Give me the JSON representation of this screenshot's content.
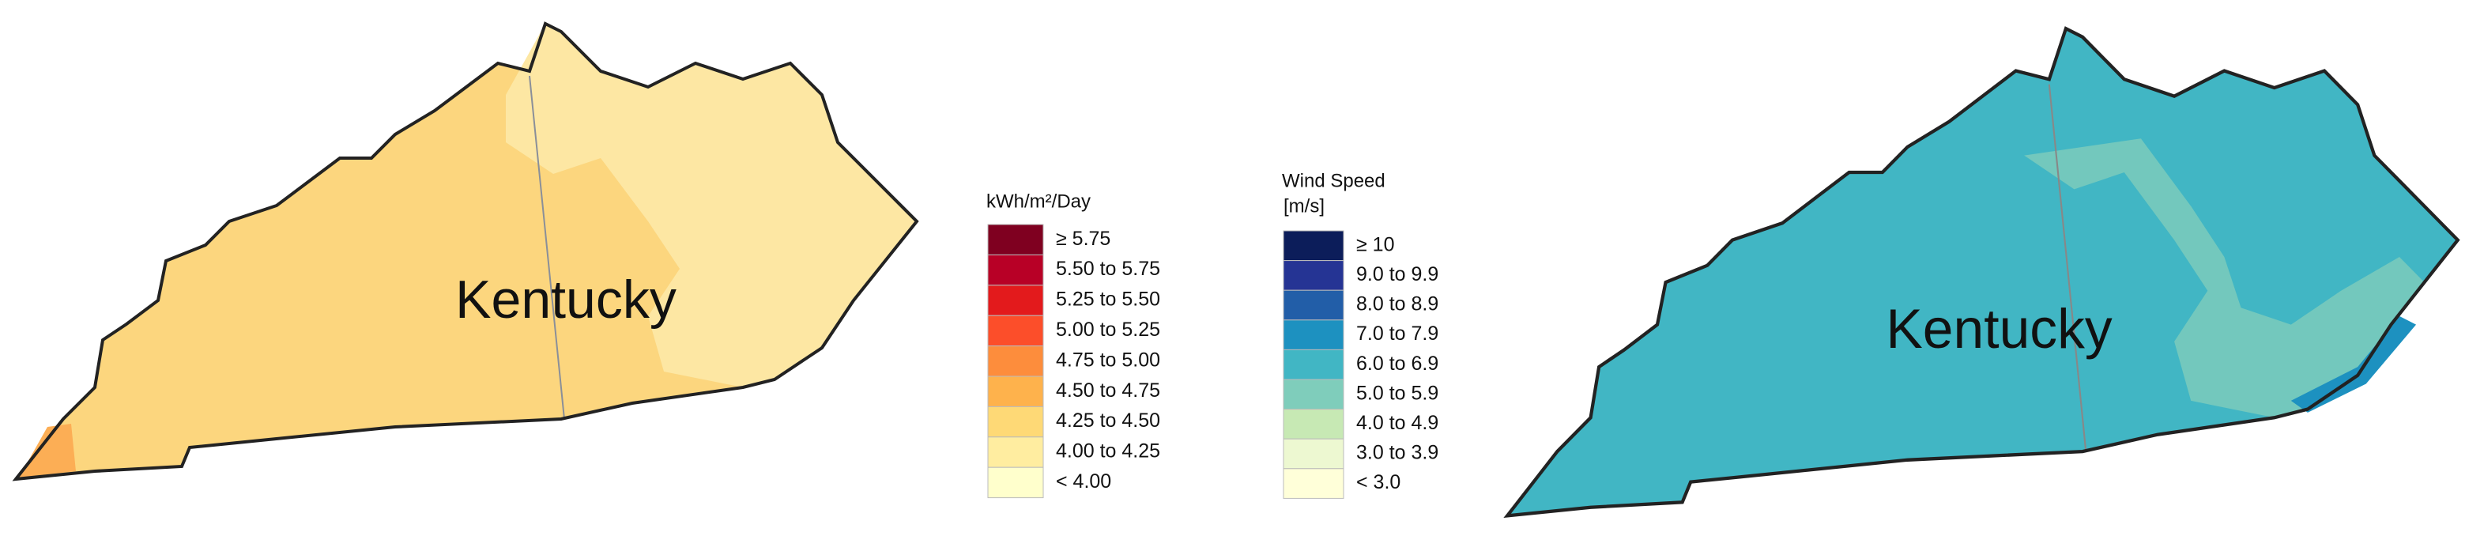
{
  "maps": [
    {
      "label": "Kentucky"
    },
    {
      "label": "Kentucky"
    }
  ],
  "legends": [
    {
      "title": "kWh/m²/Day",
      "items": [
        {
          "label": "≥ 5.75",
          "color": "#7f0020"
        },
        {
          "label": "5.50 to 5.75",
          "color": "#b80026"
        },
        {
          "label": "5.25 to 5.50",
          "color": "#e31a1c"
        },
        {
          "label": "5.00 to 5.25",
          "color": "#fc4e2a"
        },
        {
          "label": "4.75 to 5.00",
          "color": "#fd8d3c"
        },
        {
          "label": "4.50 to 4.75",
          "color": "#feb24c"
        },
        {
          "label": "4.25 to 4.50",
          "color": "#fed976"
        },
        {
          "label": "4.00 to 4.25",
          "color": "#ffeda0"
        },
        {
          "label": "< 4.00",
          "color": "#ffffcc"
        }
      ]
    },
    {
      "title": "Wind Speed",
      "unit": "[m/s]",
      "items": [
        {
          "label": "≥ 10",
          "color": "#0c1d5a"
        },
        {
          "label": "9.0 to 9.9",
          "color": "#253494"
        },
        {
          "label": "8.0 to 8.9",
          "color": "#225ea8"
        },
        {
          "label": "7.0 to 7.9",
          "color": "#1d91c0"
        },
        {
          "label": "6.0 to 6.9",
          "color": "#41b6c4"
        },
        {
          "label": "5.0 to 5.9",
          "color": "#7fcdbb"
        },
        {
          "label": "4.0 to 4.9",
          "color": "#c7e9b4"
        },
        {
          "label": "3.0 to 3.9",
          "color": "#edf8d1"
        },
        {
          "label": "< 3.0",
          "color": "#ffffd9"
        }
      ]
    }
  ]
}
